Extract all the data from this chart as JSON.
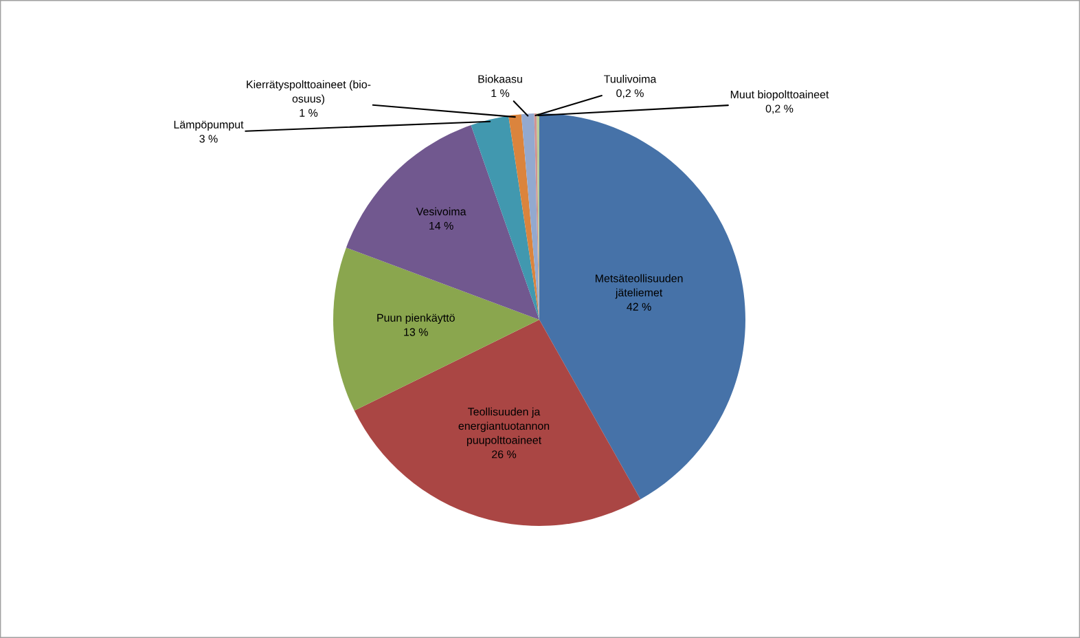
{
  "chart_data": {
    "type": "pie",
    "categories": [
      "Metsäteollisuuden\njäteliemet",
      "Teollisuuden ja\nenergiantuotannon\npuupolttoaineet",
      "Puun pienkäyttö",
      "Vesivoima",
      "Lämpöpumput",
      "Kierrätyspolttoaineet (bio-\nosuus)",
      "Biokaasu",
      "Tuulivoima",
      "Muut biopolttoaineet"
    ],
    "values": [
      42,
      26,
      13,
      14,
      3,
      1,
      1,
      0.2,
      0.2
    ],
    "value_labels": [
      "42 %",
      "26 %",
      "13 %",
      "14 %",
      "3 %",
      "1 %",
      "1 %",
      "0,2 %",
      "0,2 %"
    ],
    "colors": [
      "#4672a8",
      "#aa4644",
      "#8aa64e",
      "#71588f",
      "#4198af",
      "#db843d",
      "#93a9cf",
      "#d19392",
      "#b9cd96"
    ],
    "legend": false
  }
}
